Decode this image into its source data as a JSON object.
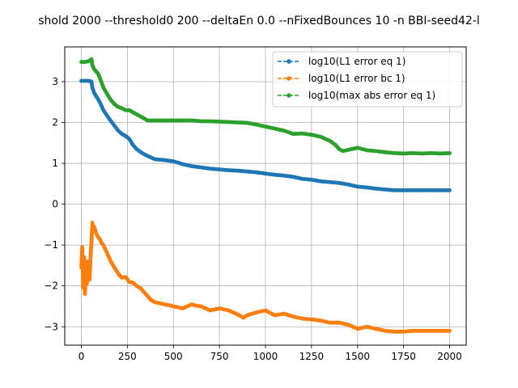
{
  "chart_data": {
    "type": "line",
    "title": "shold 2000 --threshold0 200 --deltaEn 0.0 --nFixedBounces 10 -n BBI-seed42-l",
    "xlabel": "",
    "ylabel": "",
    "xlim": [
      -90,
      2090
    ],
    "ylim": [
      -3.45,
      3.85
    ],
    "grid": true,
    "legend_position": "top-right",
    "x_ticks": [
      0,
      250,
      500,
      750,
      1000,
      1250,
      1500,
      1750,
      2000
    ],
    "x_tick_labels": [
      "0",
      "250",
      "500",
      "750",
      "1000",
      "1250",
      "1500",
      "1750",
      "2000"
    ],
    "y_ticks": [
      -3,
      -2,
      -1,
      0,
      1,
      2,
      3
    ],
    "y_tick_labels": [
      "−3",
      "−2",
      "−1",
      "0",
      "1",
      "2",
      "3"
    ],
    "series": [
      {
        "name": "log10(L1 error eq 1)",
        "color": "#1f77b4",
        "x": [
          0,
          20,
          40,
          55,
          60,
          70,
          80,
          100,
          120,
          150,
          175,
          200,
          220,
          240,
          260,
          280,
          300,
          330,
          360,
          400,
          450,
          500,
          550,
          600,
          650,
          700,
          750,
          800,
          850,
          900,
          950,
          1000,
          1050,
          1100,
          1150,
          1200,
          1250,
          1300,
          1350,
          1400,
          1450,
          1500,
          1550,
          1600,
          1650,
          1700,
          1750,
          1800,
          1850,
          1900,
          1950,
          2000
        ],
        "y": [
          3.02,
          3.02,
          3.02,
          3.0,
          2.85,
          2.72,
          2.65,
          2.5,
          2.3,
          2.1,
          1.95,
          1.8,
          1.72,
          1.67,
          1.6,
          1.45,
          1.35,
          1.25,
          1.18,
          1.1,
          1.08,
          1.05,
          0.98,
          0.93,
          0.9,
          0.87,
          0.85,
          0.83,
          0.82,
          0.8,
          0.78,
          0.75,
          0.72,
          0.7,
          0.67,
          0.62,
          0.6,
          0.56,
          0.54,
          0.52,
          0.48,
          0.43,
          0.41,
          0.38,
          0.36,
          0.34,
          0.34,
          0.34,
          0.34,
          0.34,
          0.34,
          0.34
        ]
      },
      {
        "name": "log10(L1 error bc 1)",
        "color": "#ff7f0e",
        "x": [
          0,
          5,
          10,
          15,
          20,
          25,
          30,
          35,
          40,
          45,
          50,
          55,
          60,
          65,
          70,
          80,
          90,
          100,
          110,
          120,
          140,
          160,
          180,
          200,
          220,
          240,
          260,
          280,
          300,
          320,
          340,
          360,
          380,
          400,
          450,
          500,
          550,
          600,
          620,
          650,
          700,
          750,
          800,
          850,
          880,
          900,
          950,
          1000,
          1050,
          1100,
          1150,
          1200,
          1250,
          1300,
          1350,
          1400,
          1450,
          1500,
          1550,
          1600,
          1650,
          1700,
          1750,
          1800,
          1850,
          1900,
          1950,
          2000
        ],
        "y": [
          -1.55,
          -1.05,
          -2.05,
          -1.3,
          -2.2,
          -1.7,
          -1.95,
          -1.4,
          -1.7,
          -1.85,
          -1.3,
          -0.95,
          -0.45,
          -0.65,
          -0.55,
          -0.7,
          -0.8,
          -0.85,
          -0.95,
          -1.0,
          -1.2,
          -1.4,
          -1.55,
          -1.7,
          -1.8,
          -1.78,
          -1.9,
          -1.92,
          -2.0,
          -2.05,
          -2.15,
          -2.25,
          -2.35,
          -2.4,
          -2.45,
          -2.5,
          -2.55,
          -2.45,
          -2.48,
          -2.5,
          -2.6,
          -2.55,
          -2.6,
          -2.7,
          -2.78,
          -2.72,
          -2.65,
          -2.6,
          -2.72,
          -2.68,
          -2.75,
          -2.8,
          -2.82,
          -2.85,
          -2.9,
          -2.9,
          -2.95,
          -3.05,
          -3.0,
          -3.05,
          -3.1,
          -3.12,
          -3.12,
          -3.1,
          -3.1,
          -3.1,
          -3.1,
          -3.1
        ]
      },
      {
        "name": "log10(max abs error eq 1)",
        "color": "#2ca02c",
        "x": [
          0,
          20,
          40,
          55,
          60,
          70,
          80,
          90,
          100,
          120,
          140,
          160,
          180,
          200,
          220,
          240,
          260,
          280,
          300,
          320,
          340,
          360,
          400,
          450,
          500,
          550,
          600,
          650,
          700,
          750,
          800,
          850,
          900,
          950,
          1000,
          1050,
          1100,
          1150,
          1200,
          1250,
          1300,
          1350,
          1380,
          1400,
          1420,
          1450,
          1500,
          1550,
          1600,
          1650,
          1700,
          1750,
          1800,
          1850,
          1900,
          1950,
          2000
        ],
        "y": [
          3.48,
          3.48,
          3.5,
          3.55,
          3.4,
          3.3,
          3.25,
          3.2,
          3.1,
          2.85,
          2.7,
          2.55,
          2.45,
          2.38,
          2.35,
          2.3,
          2.3,
          2.25,
          2.2,
          2.15,
          2.1,
          2.05,
          2.05,
          2.05,
          2.05,
          2.05,
          2.05,
          2.03,
          2.03,
          2.02,
          2.01,
          2.0,
          1.99,
          1.95,
          1.9,
          1.85,
          1.8,
          1.72,
          1.73,
          1.7,
          1.65,
          1.55,
          1.45,
          1.35,
          1.3,
          1.33,
          1.38,
          1.32,
          1.3,
          1.27,
          1.25,
          1.24,
          1.25,
          1.24,
          1.25,
          1.24,
          1.25
        ]
      }
    ]
  }
}
